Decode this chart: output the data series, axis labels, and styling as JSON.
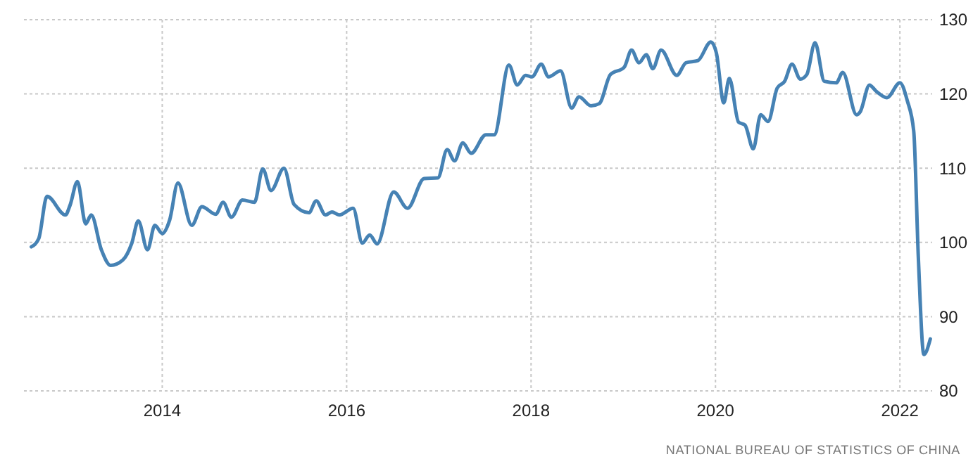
{
  "chart_data": {
    "type": "line",
    "x": [
      2012.58,
      2012.66,
      2012.75,
      2012.95,
      2013.0,
      2013.08,
      2013.17,
      2013.23,
      2013.34,
      2013.44,
      2013.57,
      2013.67,
      2013.74,
      2013.84,
      2013.92,
      2014.0,
      2014.08,
      2014.17,
      2014.32,
      2014.43,
      2014.58,
      2014.66,
      2014.75,
      2014.87,
      2015.0,
      2015.09,
      2015.18,
      2015.32,
      2015.43,
      2015.59,
      2015.67,
      2015.77,
      2015.84,
      2015.92,
      2016.07,
      2016.17,
      2016.25,
      2016.33,
      2016.51,
      2016.66,
      2016.84,
      2016.99,
      2017.09,
      2017.17,
      2017.26,
      2017.35,
      2017.51,
      2017.6,
      2017.76,
      2017.85,
      2017.94,
      2018.01,
      2018.11,
      2018.19,
      2018.32,
      2018.44,
      2018.52,
      2018.65,
      2018.74,
      2018.86,
      2019.01,
      2019.09,
      2019.17,
      2019.25,
      2019.32,
      2019.41,
      2019.58,
      2019.68,
      2019.81,
      2019.95,
      2020.01,
      2020.09,
      2020.15,
      2020.25,
      2020.32,
      2020.41,
      2020.49,
      2020.57,
      2020.67,
      2020.75,
      2020.83,
      2020.92,
      2020.99,
      2021.08,
      2021.18,
      2021.31,
      2021.38,
      2021.53,
      2021.57,
      2021.67,
      2021.74,
      2021.86,
      2022.0,
      2022.08,
      2022.15,
      2022.2,
      2022.26,
      2022.33
    ],
    "series": [
      {
        "color": "#4682b4",
        "values": [
          99.4,
          100.5,
          106.2,
          103.7,
          105,
          108.2,
          102.5,
          103.7,
          99,
          96.9,
          97.6,
          99.9,
          102.9,
          99,
          102.3,
          101.2,
          103,
          108,
          102.3,
          104.8,
          103.8,
          105.4,
          103.4,
          105.7,
          105.4,
          109.9,
          107,
          110,
          105.1,
          104,
          105.6,
          103.7,
          104.1,
          103.7,
          104.6,
          99.9,
          101,
          99.8,
          106.8,
          104.6,
          108.6,
          108.7,
          112.5,
          111,
          113.4,
          112,
          114.5,
          114.5,
          123.9,
          121.2,
          122.5,
          122.3,
          124,
          122.3,
          123.1,
          118.1,
          119.6,
          118.4,
          118.7,
          122.6,
          123.6,
          125.9,
          124.2,
          125.3,
          123.4,
          125.9,
          122.5,
          124.2,
          124.5,
          127,
          125.5,
          118.8,
          122.1,
          116.2,
          115.8,
          112.6,
          117.2,
          116.3,
          120.8,
          121.7,
          124,
          122,
          122.6,
          126.9,
          121.7,
          121.5,
          122.9,
          117.2,
          117.6,
          121.2,
          120.4,
          119.5,
          121.5,
          119.1,
          115,
          98,
          84.9,
          87
        ]
      }
    ],
    "xlim": [
      2012.5,
      2022.35
    ],
    "xticks": [
      2014,
      2016,
      2018,
      2020,
      2022
    ],
    "ylim": [
      80,
      130
    ],
    "yticks": [
      80,
      90,
      100,
      110,
      120,
      130
    ],
    "grid": true,
    "line_style": "solid",
    "marker": "none",
    "annotations": [
      "NATIONAL BUREAU OF STATISTICS OF CHINA"
    ]
  }
}
